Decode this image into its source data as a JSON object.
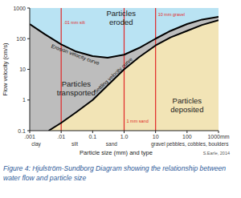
{
  "chart_data": {
    "type": "line",
    "log": true,
    "x_label": "Particle size (mm) and type",
    "y_label": "Flow velocity (cm/s)",
    "xlim": [
      0.001,
      1000
    ],
    "ylim": [
      0.1,
      1000
    ],
    "xticks": [
      {
        "value": 0.001,
        "label": ".001"
      },
      {
        "value": 0.01,
        "label": ".01"
      },
      0.1,
      {
        "value": 1,
        "label": "1.0"
      },
      10,
      100,
      {
        "value": 1000,
        "label": "1000mm"
      }
    ],
    "yticks": [
      0.1,
      1,
      10,
      100,
      1000
    ],
    "series": [
      {
        "name": "Erosion velocity curve",
        "color": "#000000",
        "x": [
          0.001,
          0.003,
          0.01,
          0.03,
          0.1,
          0.3,
          1,
          3,
          10,
          30,
          100,
          300,
          1000
        ],
        "values": [
          300,
          140,
          65,
          38,
          27,
          24,
          30,
          50,
          100,
          180,
          300,
          420,
          520
        ]
      },
      {
        "name": "Settling velocity curve",
        "color": "#000000",
        "x": [
          0.004,
          0.01,
          0.03,
          0.1,
          0.3,
          1,
          3,
          10,
          30,
          100,
          300,
          1000
        ],
        "values": [
          0.1,
          0.18,
          0.4,
          1,
          3,
          10,
          25,
          60,
          110,
          180,
          280,
          400
        ]
      }
    ],
    "regions": [
      {
        "label": "Particles eroded",
        "color": "#b9e3f3",
        "x": 0.8,
        "y": 480
      },
      {
        "label": "Particles transported",
        "color": "#bdbdbd",
        "x": 0.03,
        "y": 2.5
      },
      {
        "label": "Particles deposited",
        "color": "#f2e4b6",
        "x": 100,
        "y": 0.7
      }
    ],
    "markers": [
      {
        "x": 0.01,
        "label": ".01 mm silt",
        "y": 300,
        "color": "#e02828"
      },
      {
        "x": 1,
        "label": "1 mm sand",
        "y": 0.18,
        "color": "#e02828"
      },
      {
        "x": 10,
        "label": "10 mm gravel",
        "y": 550,
        "color": "#e02828"
      }
    ],
    "size_classes": [
      {
        "label": "clay",
        "x": 0.0016
      },
      {
        "label": "silt",
        "x": 0.027
      },
      {
        "label": "sand",
        "x": 0.4
      },
      {
        "label": "gravel",
        "x": 12
      },
      {
        "label": "pebbles, cobbles, boulders",
        "x": 215
      }
    ],
    "credit": "S.Earle, 2014",
    "caption": "Figure 4: Hjulström-Sundborg Diagram showing the relationship between water flow and particle size"
  }
}
